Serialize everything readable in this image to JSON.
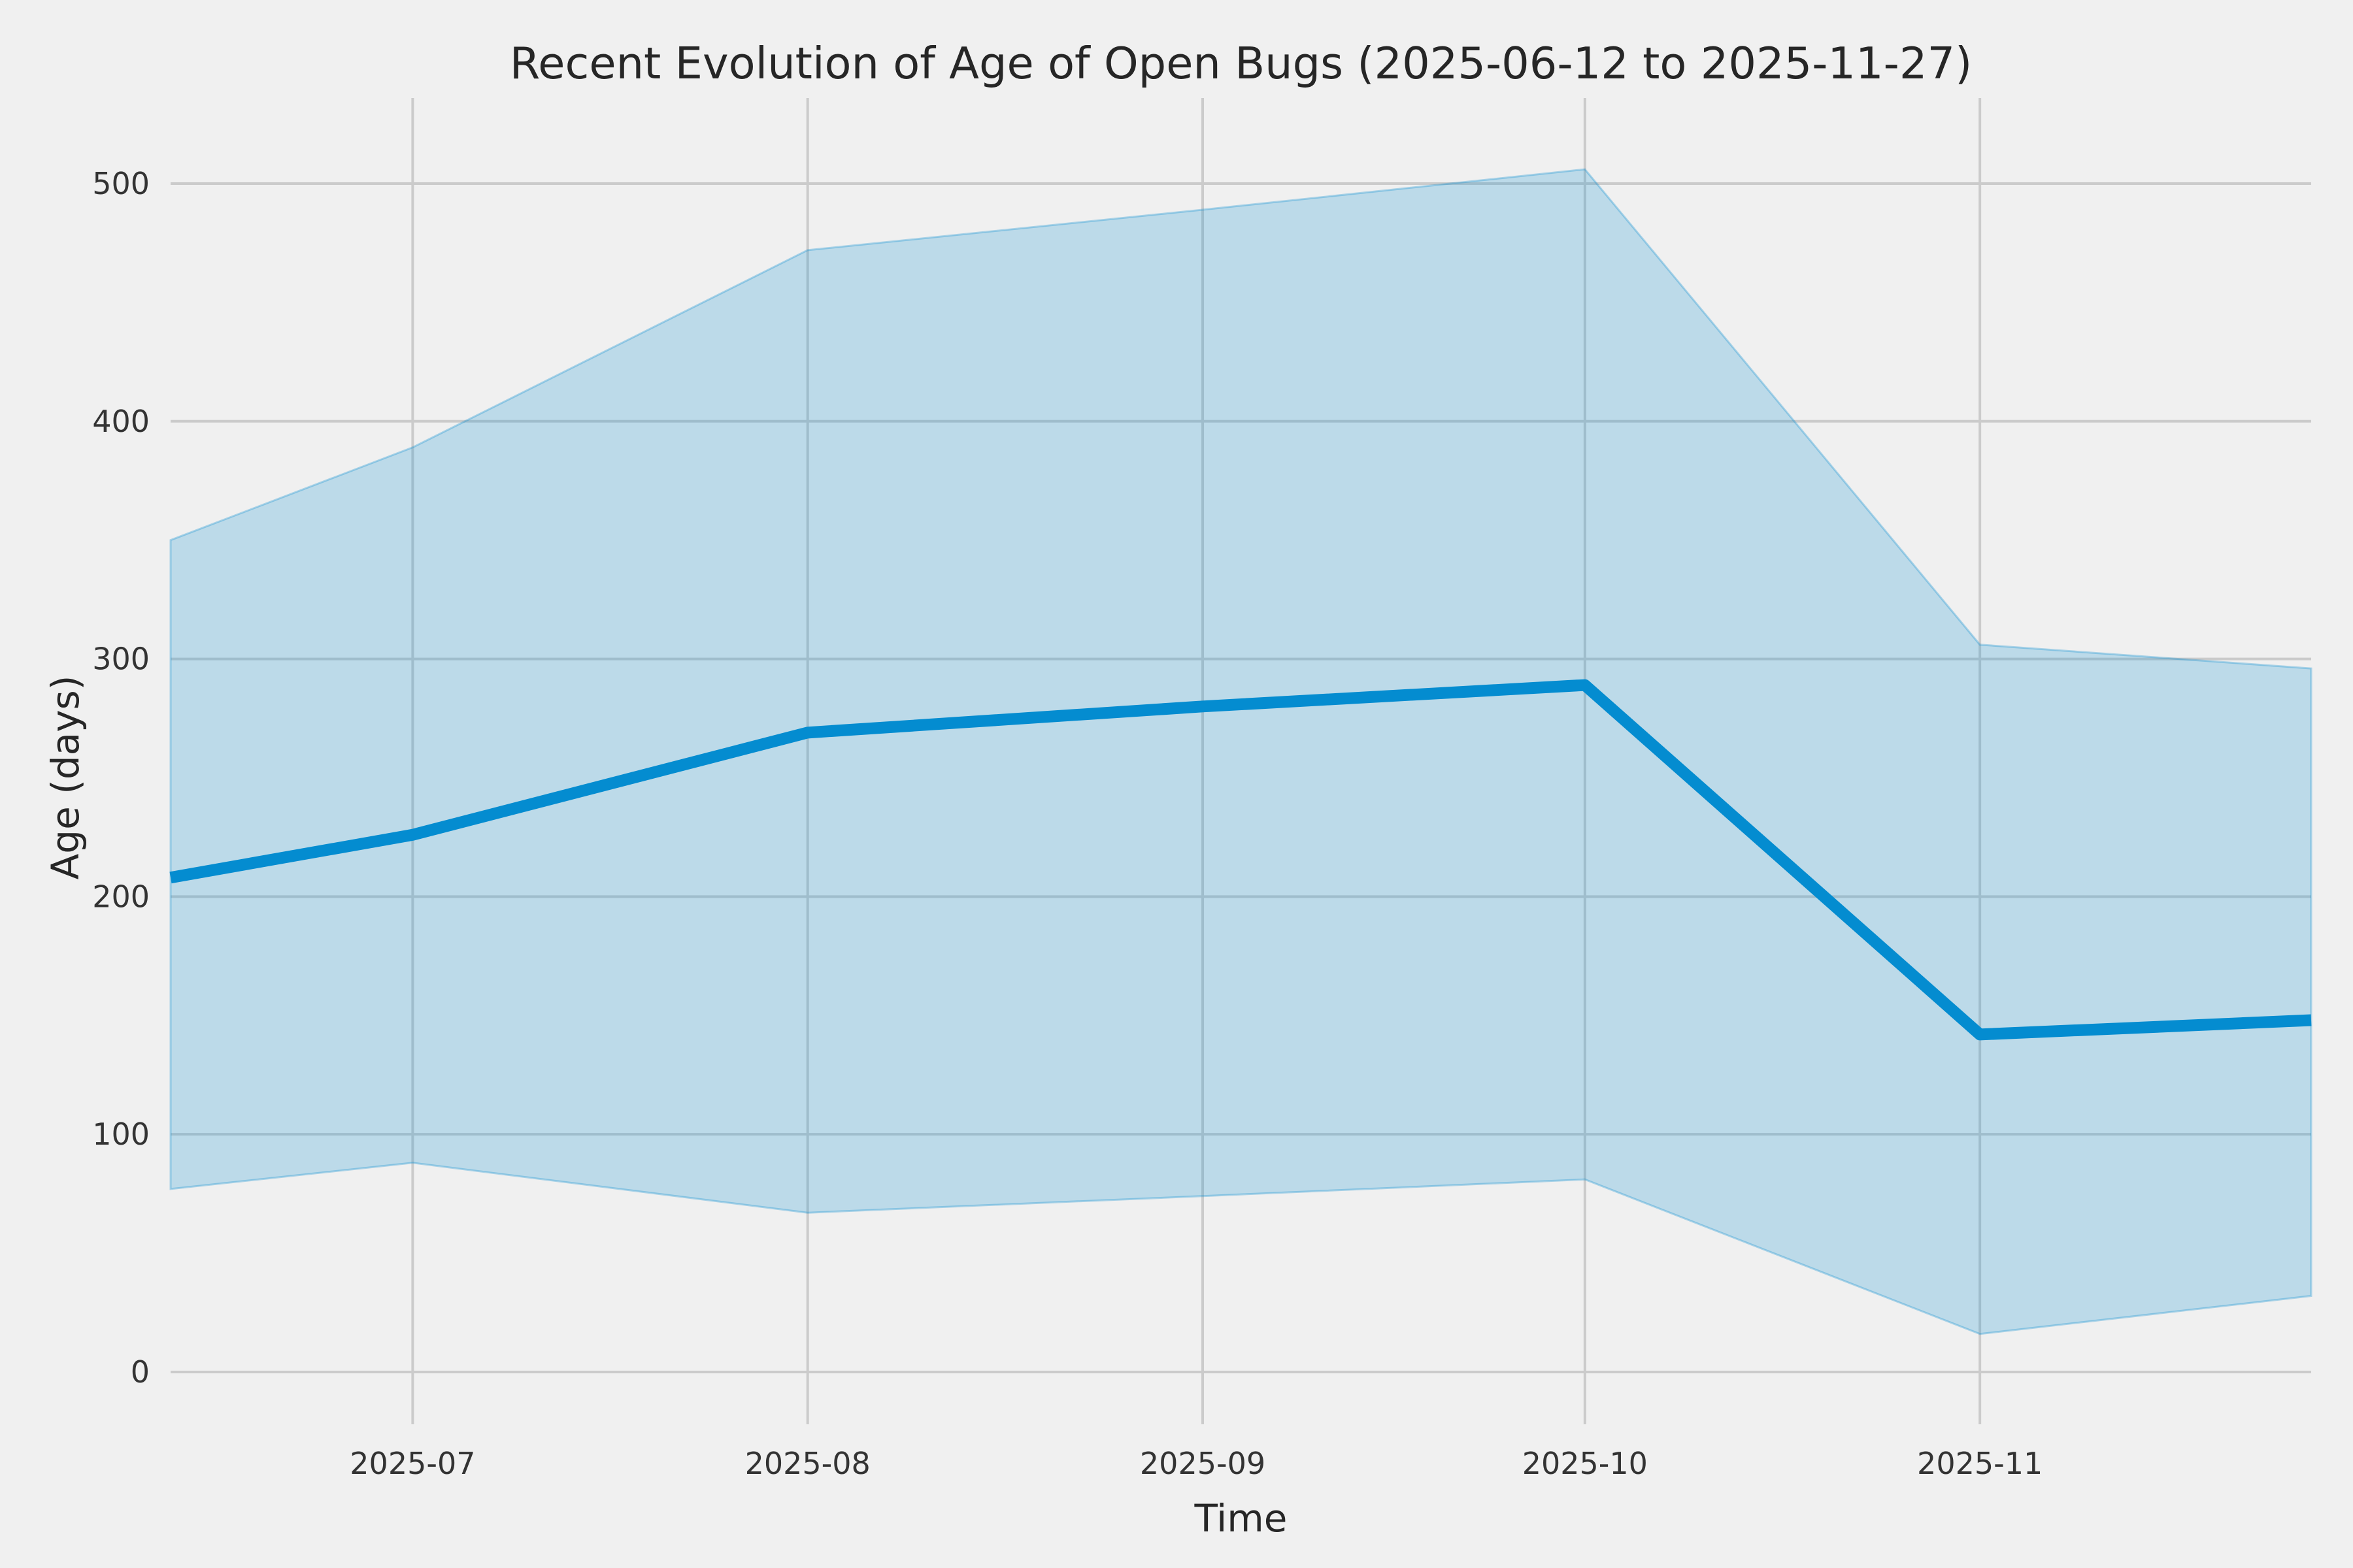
{
  "chart_data": {
    "type": "line",
    "title": "Recent Evolution of Age of Open Bugs (2025-06-12 to 2025-11-27)",
    "xlabel": "Time",
    "ylabel": "Age (days)",
    "date_range_start": "2025-06-12",
    "date_range_end": "2025-11-27",
    "x_dates": [
      "2025-06-12",
      "2025-07-01",
      "2025-08-01",
      "2025-09-01",
      "2025-10-01",
      "2025-11-01",
      "2025-11-27"
    ],
    "x_day_offsets": [
      0,
      19,
      50,
      81,
      111,
      142,
      168
    ],
    "series": [
      {
        "name": "median-age-line",
        "values": [
          208,
          226,
          269,
          280,
          289,
          142,
          148
        ]
      },
      {
        "name": "band-upper",
        "values": [
          350,
          389,
          472,
          489,
          506,
          306,
          296
        ]
      },
      {
        "name": "band-lower",
        "values": [
          77,
          88,
          67,
          74,
          81,
          16,
          32
        ]
      }
    ],
    "x_tick_labels": [
      "2025-07",
      "2025-08",
      "2025-09",
      "2025-10",
      "2025-11"
    ],
    "x_tick_day_offsets": [
      19,
      50,
      81,
      111,
      142
    ],
    "y_tick_labels": [
      "0",
      "100",
      "200",
      "300",
      "400",
      "500"
    ],
    "y_tick_values": [
      0,
      100,
      200,
      300,
      400,
      500
    ],
    "ylim": [
      -22,
      536
    ],
    "xlim_days": [
      0,
      168
    ],
    "grid": true,
    "legend_position": "none",
    "colors": {
      "background": "#f0f0f0",
      "gridline": "#cbcbcb",
      "line": "#048cd0",
      "band_fill": "rgba(4,140,208,0.22)",
      "band_edge": "rgba(4,140,208,0.30)",
      "tick_text": "#333333",
      "title_text": "#262626"
    }
  }
}
